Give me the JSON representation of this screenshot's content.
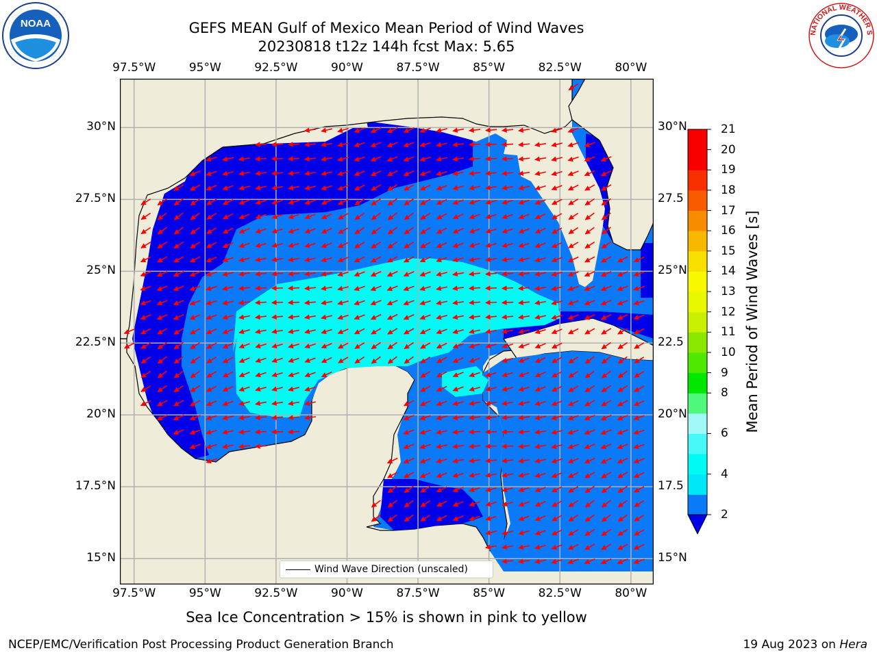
{
  "header": {
    "title_line1": "GEFS MEAN Gulf of Mexico Mean Period of Wind Waves",
    "title_line2": "20230818 t12z 144h fcst   Max: 5.65"
  },
  "logos": {
    "noaa_text": "NOAA",
    "nws_text": "NATIONAL WEATHER SERVICE"
  },
  "map": {
    "lon_ticks": [
      "97.5°W",
      "95°W",
      "92.5°W",
      "90°W",
      "87.5°W",
      "85°W",
      "82.5°W",
      "80°W"
    ],
    "lat_ticks": [
      "30°N",
      "27.5°N",
      "25°N",
      "22.5°N",
      "20°N",
      "17.5°N",
      "15°N"
    ],
    "lat_ticks_right": [
      "30°N",
      "27.5",
      "25°N",
      "22.5",
      "20°N",
      "17.5",
      "15°N"
    ],
    "extent": {
      "lon": [
        -98,
        -79.2
      ],
      "lat": [
        14.1,
        31.7
      ]
    },
    "gridlines": true,
    "colors": {
      "land": "#efedda",
      "band_2_4": "#0a7af8",
      "band_4_6": "#00fbf4",
      "below_2": "#0000e8",
      "arrows": "#ff0000"
    }
  },
  "legend": {
    "label": "Wind Wave Direction (unscaled)"
  },
  "colorbar": {
    "title": "Mean Period of Wind Waves [s]",
    "levels": [
      2,
      3,
      4,
      5,
      6,
      7,
      8,
      9,
      10,
      11,
      12,
      13,
      14,
      15,
      16,
      17,
      18,
      19,
      20,
      21
    ],
    "labels": [
      "2",
      "4",
      "6",
      "8",
      "9",
      "10",
      "11",
      "12",
      "13",
      "14",
      "15",
      "16",
      "17",
      "18",
      "19",
      "20",
      "21"
    ],
    "colors": [
      "#0a7af8",
      "#00e8f8",
      "#00fbf4",
      "#46f8f8",
      "#a0f8f8",
      "#4ef87c",
      "#00e800",
      "#4ee800",
      "#8ae800",
      "#c8f000",
      "#e8f800",
      "#f8f800",
      "#f8e000",
      "#f8b800",
      "#f88c00",
      "#f85c00",
      "#f83000",
      "#f80000",
      "#f80000"
    ],
    "extend": "min"
  },
  "notes": {
    "ice_note": "Sea Ice Concentration > 15% is shown in pink to yellow"
  },
  "footer": {
    "left": "NCEP/EMC/Verification Post Processing Product Generation Branch",
    "right_date": "19 Aug 2023 on ",
    "right_host": "Hera"
  }
}
